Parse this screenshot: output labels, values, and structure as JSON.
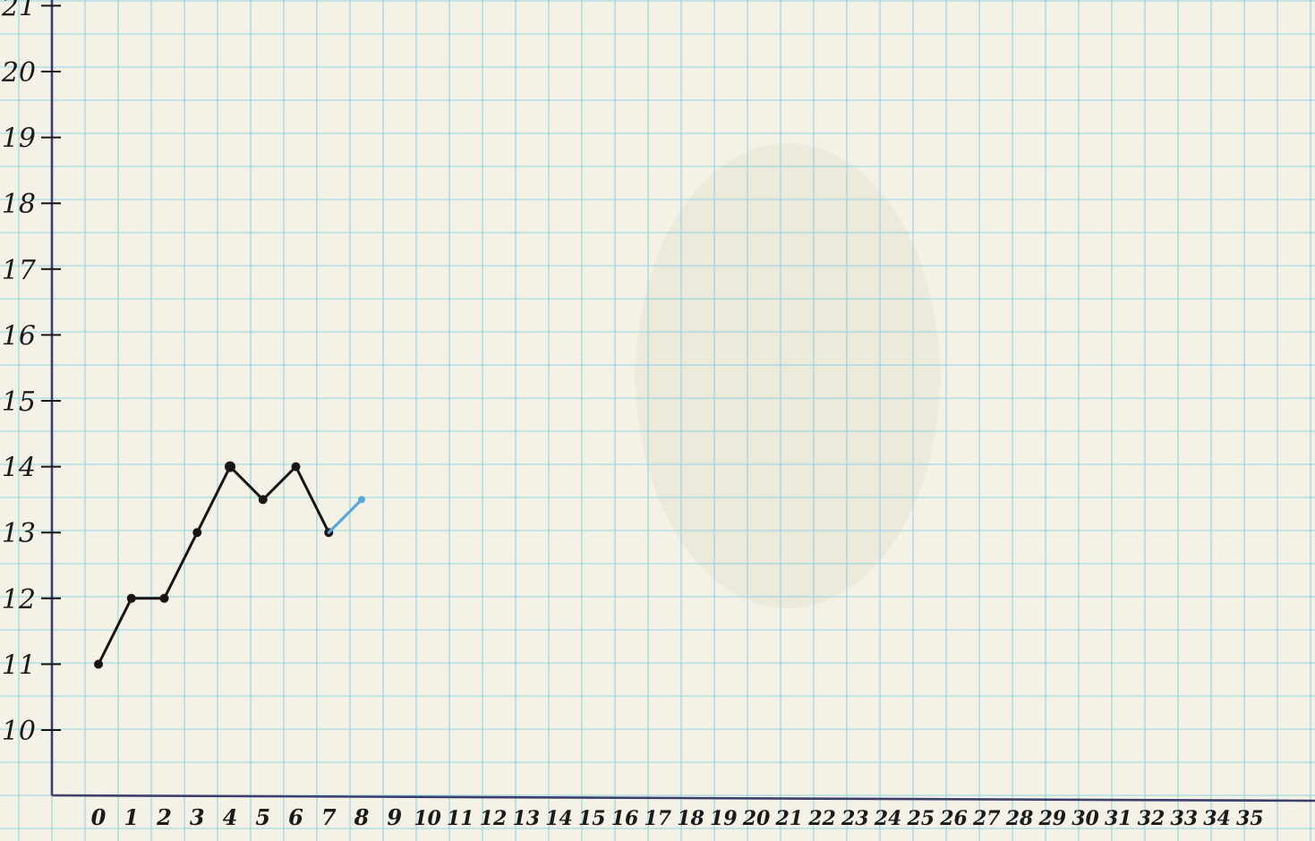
{
  "chart_data": {
    "type": "line",
    "title": "",
    "xlabel": "",
    "ylabel": "",
    "x_ticks": [
      "0",
      "1",
      "2",
      "3",
      "4",
      "5",
      "6",
      "7",
      "8",
      "9",
      "10",
      "11",
      "12",
      "13",
      "14",
      "15",
      "16",
      "17",
      "18",
      "19",
      "20",
      "21",
      "22",
      "23",
      "24",
      "25",
      "26",
      "27",
      "28",
      "29",
      "30",
      "31",
      "32",
      "33",
      "34",
      "35"
    ],
    "y_ticks": [
      "10",
      "11",
      "12",
      "13",
      "14",
      "15",
      "16",
      "17",
      "18",
      "19",
      "20",
      "21"
    ],
    "xlim": [
      0,
      35
    ],
    "ylim": [
      10,
      21
    ],
    "grid": true,
    "series": [
      {
        "color": "#1a1414",
        "x": [
          0,
          1,
          2,
          3,
          4,
          5,
          6,
          7
        ],
        "y": [
          11,
          12,
          12,
          13,
          14,
          13.5,
          14,
          13
        ]
      },
      {
        "color": "#5aa7e0",
        "x": [
          7,
          8
        ],
        "y": [
          13,
          13.5
        ]
      }
    ]
  },
  "colors": {
    "paper": "#f4f1e6",
    "grid": "#7fd0e0",
    "axis": "#3c3f6e"
  }
}
